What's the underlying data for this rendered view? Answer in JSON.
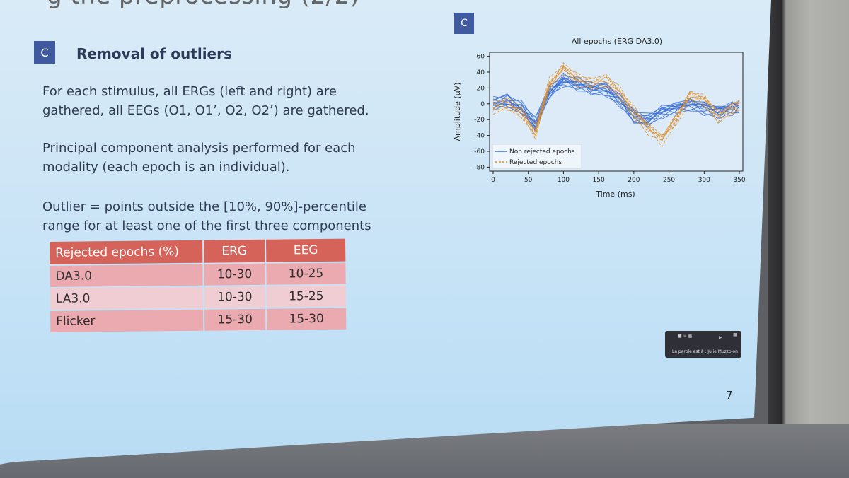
{
  "slide": {
    "title_fragment": "g the preprocessing (2/2)",
    "section_badge": "C",
    "heading": "Removal of outliers",
    "paragraph1": [
      "For each stimulus, all ERGs (left and right) are",
      "gathered, all EEGs (O1, O1’, O2, O2’) are gathered."
    ],
    "paragraph2": [
      "Principal component analysis performed for each",
      "modality (each epoch is an individual)."
    ],
    "paragraph3": [
      "Outlier = points outside the [10%, 90%]-percentile",
      "range for at least one of the first three components"
    ],
    "page_number": "7"
  },
  "table": {
    "headers": [
      "Rejected epochs (%)",
      "ERG",
      "EEG"
    ],
    "rows": [
      [
        "DA3.0",
        "10-30",
        "10-25"
      ],
      [
        "LA3.0",
        "10-30",
        "15-25"
      ],
      [
        "Flicker",
        "15-30",
        "15-30"
      ]
    ]
  },
  "chart_data": {
    "type": "line",
    "badge": "C",
    "title": "All epochs (ERG DA3.0)",
    "xlabel": "Time (ms)",
    "ylabel": "Amplitude (µV)",
    "xlim": [
      -5,
      355
    ],
    "ylim": [
      -85,
      65
    ],
    "xticks": [
      0,
      50,
      100,
      150,
      200,
      250,
      300,
      350
    ],
    "yticks": [
      60,
      40,
      20,
      0,
      -20,
      -40,
      -60,
      -80
    ],
    "legend_position": "lower-left",
    "grid": false,
    "colors": {
      "non_rejected": "#3a6fd8",
      "rejected": "#e0902a"
    },
    "series": [
      {
        "name": "Non rejected epochs",
        "style": "solid",
        "x": [
          0,
          20,
          40,
          60,
          80,
          100,
          120,
          140,
          160,
          180,
          200,
          220,
          240,
          260,
          280,
          300,
          320,
          340,
          350
        ],
        "y": [
          0,
          3,
          -5,
          -25,
          15,
          30,
          25,
          20,
          18,
          5,
          -15,
          -20,
          -10,
          -5,
          0,
          -5,
          -10,
          -5,
          -3
        ]
      },
      {
        "name": "Rejected epochs",
        "style": "dashed",
        "x": [
          0,
          20,
          40,
          60,
          80,
          100,
          120,
          140,
          160,
          180,
          200,
          220,
          240,
          260,
          280,
          300,
          320,
          340,
          350
        ],
        "y": [
          -5,
          0,
          -10,
          -35,
          25,
          45,
          30,
          25,
          30,
          15,
          -10,
          -30,
          -45,
          -20,
          10,
          5,
          -15,
          -5,
          0
        ]
      }
    ]
  },
  "recorder": {
    "caption": "La parole est à : Julie Muzzolon"
  },
  "colors": {
    "badge": "#3f5a9e",
    "table_header": "#d6635a",
    "heading": "#2d3b5a"
  }
}
